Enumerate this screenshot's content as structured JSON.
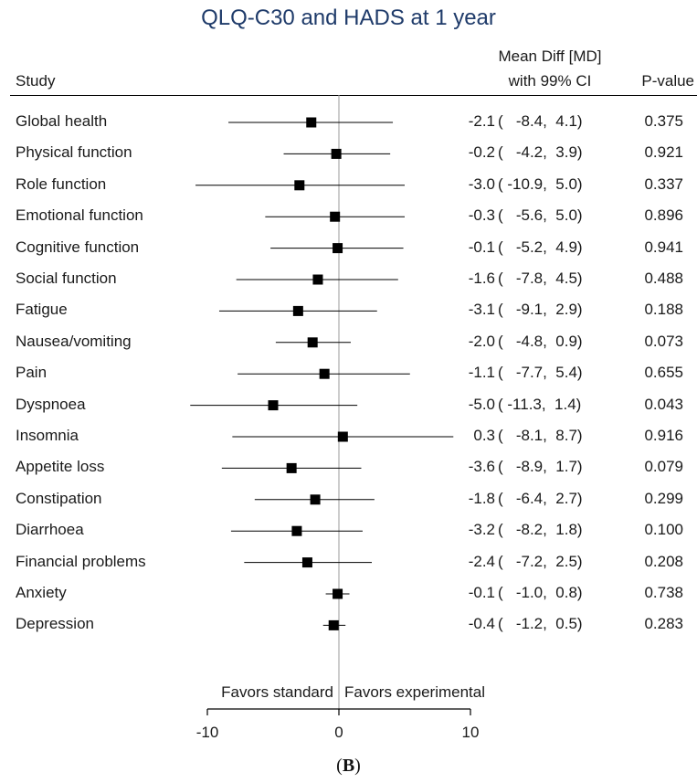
{
  "chart_data": {
    "type": "forest",
    "title": "QLQ-C30 and HADS at 1 year",
    "columns": {
      "study": "Study",
      "effect_line1": "Mean Diff [MD]",
      "effect_line2": "with 99% CI",
      "pvalue": "P-value"
    },
    "rows": [
      {
        "label": "Global health",
        "md": -2.1,
        "lo": -8.4,
        "hi": 4.1,
        "md_text": "-2.1",
        "ci_text": "(   -8.4,  4.1)",
        "p": "0.375"
      },
      {
        "label": "Physical function",
        "md": -0.2,
        "lo": -4.2,
        "hi": 3.9,
        "md_text": "-0.2",
        "ci_text": "(   -4.2,  3.9)",
        "p": "0.921"
      },
      {
        "label": "Role function",
        "md": -3.0,
        "lo": -10.9,
        "hi": 5.0,
        "md_text": "-3.0",
        "ci_text": "( -10.9,  5.0)",
        "p": "0.337"
      },
      {
        "label": "Emotional function",
        "md": -0.3,
        "lo": -5.6,
        "hi": 5.0,
        "md_text": "-0.3",
        "ci_text": "(   -5.6,  5.0)",
        "p": "0.896"
      },
      {
        "label": "Cognitive function",
        "md": -0.1,
        "lo": -5.2,
        "hi": 4.9,
        "md_text": "-0.1",
        "ci_text": "(   -5.2,  4.9)",
        "p": "0.941"
      },
      {
        "label": "Social function",
        "md": -1.6,
        "lo": -7.8,
        "hi": 4.5,
        "md_text": "-1.6",
        "ci_text": "(   -7.8,  4.5)",
        "p": "0.488"
      },
      {
        "label": "Fatigue",
        "md": -3.1,
        "lo": -9.1,
        "hi": 2.9,
        "md_text": "-3.1",
        "ci_text": "(   -9.1,  2.9)",
        "p": "0.188"
      },
      {
        "label": "Nausea/vomiting",
        "md": -2.0,
        "lo": -4.8,
        "hi": 0.9,
        "md_text": "-2.0",
        "ci_text": "(   -4.8,  0.9)",
        "p": "0.073"
      },
      {
        "label": "Pain",
        "md": -1.1,
        "lo": -7.7,
        "hi": 5.4,
        "md_text": "-1.1",
        "ci_text": "(   -7.7,  5.4)",
        "p": "0.655"
      },
      {
        "label": "Dyspnoea",
        "md": -5.0,
        "lo": -11.3,
        "hi": 1.4,
        "md_text": "-5.0",
        "ci_text": "( -11.3,  1.4)",
        "p": "0.043"
      },
      {
        "label": "Insomnia",
        "md": 0.3,
        "lo": -8.1,
        "hi": 8.7,
        "md_text": "0.3",
        "ci_text": "(   -8.1,  8.7)",
        "p": "0.916"
      },
      {
        "label": "Appetite loss",
        "md": -3.6,
        "lo": -8.9,
        "hi": 1.7,
        "md_text": "-3.6",
        "ci_text": "(   -8.9,  1.7)",
        "p": "0.079"
      },
      {
        "label": "Constipation",
        "md": -1.8,
        "lo": -6.4,
        "hi": 2.7,
        "md_text": "-1.8",
        "ci_text": "(   -6.4,  2.7)",
        "p": "0.299"
      },
      {
        "label": "Diarrhoea",
        "md": -3.2,
        "lo": -8.2,
        "hi": 1.8,
        "md_text": "-3.2",
        "ci_text": "(   -8.2,  1.8)",
        "p": "0.100"
      },
      {
        "label": "Financial problems",
        "md": -2.4,
        "lo": -7.2,
        "hi": 2.5,
        "md_text": "-2.4",
        "ci_text": "(   -7.2,  2.5)",
        "p": "0.208"
      },
      {
        "label": "Anxiety",
        "md": -0.1,
        "lo": -1.0,
        "hi": 0.8,
        "md_text": "-0.1",
        "ci_text": "(   -1.0,  0.8)",
        "p": "0.738"
      },
      {
        "label": "Depression",
        "md": -0.4,
        "lo": -1.2,
        "hi": 0.5,
        "md_text": "-0.4",
        "ci_text": "(   -1.2,  0.5)",
        "p": "0.283"
      }
    ],
    "x_axis": {
      "ticks": [
        -10,
        0,
        10
      ],
      "tick_labels": [
        "-10",
        "0",
        "10"
      ],
      "range": [
        -10,
        10
      ],
      "reference_line": 0
    },
    "favors_left": "Favors standard",
    "favors_right": "Favors experimental",
    "marker_color": "#000000",
    "reference_line_color": "#9a9a9a",
    "title_color": "#1f3b6a"
  },
  "caption": "(B)"
}
